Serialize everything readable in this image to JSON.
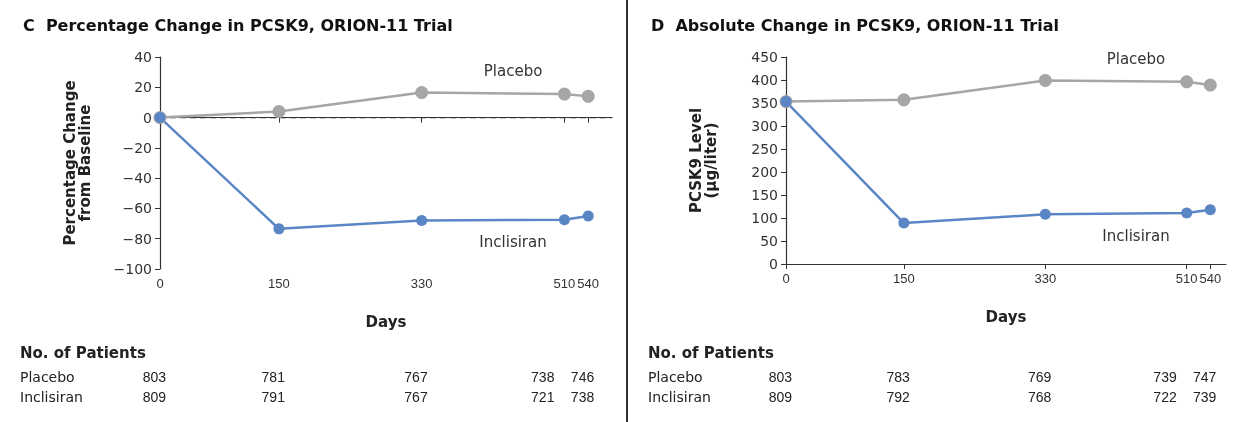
{
  "chart_data": [
    {
      "type": "line",
      "title": "C  Percentage Change in PCSK9, ORION-11 Trial",
      "xlabel": "Days",
      "ylabel": "Percentage Change\nfrom Baseline",
      "x": [
        0,
        150,
        330,
        510,
        540
      ],
      "xlim": [
        0,
        570
      ],
      "xticks": [
        0,
        150,
        330,
        510,
        540
      ],
      "ylim": [
        -100,
        40
      ],
      "yticks": [
        -100,
        -80,
        -60,
        -40,
        -20,
        0,
        20,
        40
      ],
      "marker": "circle",
      "line_style": "solid",
      "series": [
        {
          "name": "Placebo",
          "color": "#a6a6a6",
          "values": [
            0,
            4,
            16.5,
            15.5,
            14
          ]
        },
        {
          "name": "Inclisiran",
          "color": "#5b86c5",
          "values": [
            0,
            -73.5,
            -68,
            -67.5,
            -65
          ]
        }
      ],
      "ref_lines": [
        {
          "axis": "y",
          "value": 0,
          "color": "#333333",
          "line_style": "dashed"
        }
      ],
      "annotations": [
        "No. of Patients",
        "Placebo",
        "803",
        "781",
        "767",
        "738",
        "746",
        "Inclisiran",
        "809",
        "791",
        "767",
        "721",
        "738"
      ]
    },
    {
      "type": "line",
      "title": "D  Absolute Change in PCSK9, ORION-11 Trial",
      "xlabel": "Days",
      "ylabel": "PCSK9 Level\n(μg/liter)",
      "x": [
        0,
        150,
        330,
        510,
        540
      ],
      "xlim": [
        0,
        560
      ],
      "xticks": [
        0,
        150,
        330,
        510,
        540
      ],
      "ylim": [
        0,
        450
      ],
      "yticks": [
        0,
        50,
        100,
        150,
        200,
        250,
        300,
        350,
        400,
        450
      ],
      "marker": "circle",
      "line_style": "solid",
      "series": [
        {
          "name": "Placebo",
          "color": "#a6a6a6",
          "values": [
            353,
            357,
            399,
            396,
            389
          ]
        },
        {
          "name": "Inclisiran",
          "color": "#5b86c5",
          "values": [
            353,
            89,
            108,
            111,
            118
          ]
        }
      ],
      "annotations": [
        "No. of Patients",
        "Placebo",
        "803",
        "783",
        "769",
        "739",
        "747",
        "Inclisiran",
        "809",
        "792",
        "768",
        "722",
        "739"
      ]
    }
  ]
}
